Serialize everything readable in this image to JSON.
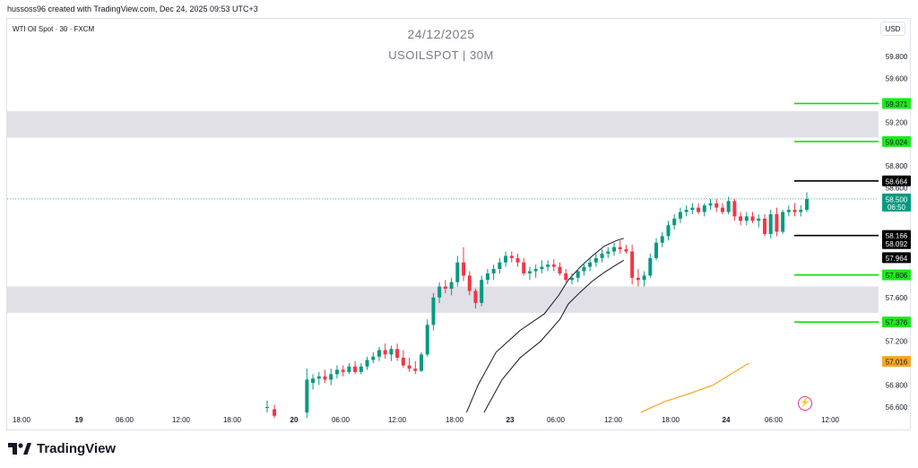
{
  "header": {
    "credit": "hussoss96 created with TradingView.com, Dec 24, 2025 09:53 UTC+3"
  },
  "chart_header": {
    "symbol_label": "WTI Oil Spot · 30 · FXCM",
    "date_title": "24/12/2025",
    "symbol_title": "USOILSPOT | 30M",
    "currency": "USD"
  },
  "footer": {
    "brand": "TradingView"
  },
  "colors": {
    "up": "#089981",
    "down": "#f23645",
    "zone": "#e0e0e6",
    "green_line": "#00e600",
    "black_line": "#000000",
    "orange_line": "#f5a623",
    "grid_text": "#131722",
    "last_price": "#089981"
  },
  "icons": {
    "flash": "flash-icon",
    "logo": "tradingview-logo-icon"
  },
  "chart_data": {
    "type": "candlestick",
    "y_range": [
      56.5,
      60.1
    ],
    "y_ticks": [
      "59.800",
      "59.600",
      "59.200",
      "58.800",
      "58.600",
      "57.600",
      "57.200",
      "56.800",
      "56.600"
    ],
    "y_tick_values": [
      59.8,
      59.6,
      59.2,
      58.8,
      58.6,
      57.6,
      57.2,
      56.8,
      56.6
    ],
    "x_ticks": [
      "18:00",
      "19",
      "06:00",
      "12:00",
      "18:00",
      "20",
      "06:00",
      "12:00",
      "18:00",
      "23",
      "06:00",
      "12:00",
      "18:00",
      "24",
      "06:00",
      "12:00"
    ],
    "x_tick_bold": [
      false,
      true,
      false,
      false,
      false,
      true,
      false,
      false,
      false,
      true,
      false,
      false,
      false,
      true,
      false,
      false
    ],
    "zones": [
      {
        "top": 59.3,
        "bottom": 59.06
      },
      {
        "top": 57.7,
        "bottom": 57.46
      }
    ],
    "levels": [
      {
        "value": 59.371,
        "label": "59.371",
        "kind": "green"
      },
      {
        "value": 59.024,
        "label": "59.024",
        "kind": "green"
      },
      {
        "value": 58.664,
        "label": "58.664",
        "kind": "black"
      },
      {
        "value": 58.166,
        "label": "58.166",
        "kind": "black"
      },
      {
        "value": 57.806,
        "label": "57.806",
        "kind": "green"
      },
      {
        "value": 57.376,
        "label": "57.376",
        "kind": "green"
      }
    ],
    "axis_labels": [
      {
        "value": 58.5,
        "text": "58.500",
        "sub": "06:50",
        "kind": "last"
      },
      {
        "value": 58.092,
        "text": "58.092",
        "kind": "ma_dark"
      },
      {
        "value": 57.964,
        "text": "57.964",
        "kind": "ma_dark"
      },
      {
        "value": 57.016,
        "text": "57.016",
        "kind": "ma_orange"
      }
    ],
    "last_price": 58.5,
    "ma_upper": [
      [
        42.55,
        56.55
      ],
      [
        43.5,
        56.8
      ],
      [
        45,
        57.1
      ],
      [
        47,
        57.3
      ],
      [
        49,
        57.45
      ],
      [
        50.2,
        57.62
      ],
      [
        51,
        57.76
      ],
      [
        52,
        57.88
      ],
      [
        53,
        57.98
      ],
      [
        54,
        58.07
      ],
      [
        55,
        58.12
      ],
      [
        55.6,
        58.14
      ]
    ],
    "ma_lower": [
      [
        44,
        56.55
      ],
      [
        45.5,
        56.85
      ],
      [
        47,
        57.05
      ],
      [
        48.7,
        57.2
      ],
      [
        50.3,
        57.4
      ],
      [
        51,
        57.54
      ],
      [
        52,
        57.65
      ],
      [
        53,
        57.75
      ],
      [
        54,
        57.83
      ],
      [
        55,
        57.9
      ],
      [
        55.6,
        57.94
      ]
    ],
    "ma_orange": [
      [
        57,
        56.55
      ],
      [
        59,
        56.65
      ],
      [
        61,
        56.72
      ],
      [
        63,
        56.8
      ],
      [
        64.5,
        56.9
      ],
      [
        66,
        57.0
      ]
    ],
    "candles": [
      {
        "x": 26.0,
        "o": 56.6,
        "h": 56.66,
        "l": 56.55,
        "c": 56.6
      },
      {
        "x": 26.6,
        "o": 56.58,
        "h": 56.62,
        "l": 56.5,
        "c": 56.52
      },
      {
        "x": 29.3,
        "o": 56.55,
        "h": 56.95,
        "l": 56.5,
        "c": 56.85
      },
      {
        "x": 29.8,
        "o": 56.82,
        "h": 56.9,
        "l": 56.76,
        "c": 56.86
      },
      {
        "x": 30.3,
        "o": 56.86,
        "h": 56.92,
        "l": 56.8,
        "c": 56.88
      },
      {
        "x": 30.8,
        "o": 56.88,
        "h": 56.94,
        "l": 56.82,
        "c": 56.85
      },
      {
        "x": 31.3,
        "o": 56.85,
        "h": 56.95,
        "l": 56.8,
        "c": 56.9
      },
      {
        "x": 31.8,
        "o": 56.9,
        "h": 56.98,
        "l": 56.86,
        "c": 56.94
      },
      {
        "x": 32.3,
        "o": 56.94,
        "h": 56.98,
        "l": 56.88,
        "c": 56.92
      },
      {
        "x": 32.8,
        "o": 56.92,
        "h": 57.0,
        "l": 56.9,
        "c": 56.97
      },
      {
        "x": 33.3,
        "o": 56.97,
        "h": 57.02,
        "l": 56.9,
        "c": 56.92
      },
      {
        "x": 33.8,
        "o": 56.92,
        "h": 57.0,
        "l": 56.9,
        "c": 56.97
      },
      {
        "x": 34.3,
        "o": 56.97,
        "h": 57.06,
        "l": 56.94,
        "c": 57.03
      },
      {
        "x": 34.8,
        "o": 57.03,
        "h": 57.1,
        "l": 57.0,
        "c": 57.06
      },
      {
        "x": 35.3,
        "o": 57.06,
        "h": 57.15,
        "l": 57.02,
        "c": 57.12
      },
      {
        "x": 35.8,
        "o": 57.12,
        "h": 57.18,
        "l": 57.04,
        "c": 57.08
      },
      {
        "x": 36.3,
        "o": 57.08,
        "h": 57.16,
        "l": 57.02,
        "c": 57.13
      },
      {
        "x": 36.8,
        "o": 57.13,
        "h": 57.18,
        "l": 57.02,
        "c": 57.05
      },
      {
        "x": 37.3,
        "o": 57.05,
        "h": 57.12,
        "l": 56.96,
        "c": 56.98
      },
      {
        "x": 37.8,
        "o": 56.98,
        "h": 57.05,
        "l": 56.92,
        "c": 56.95
      },
      {
        "x": 38.3,
        "o": 56.95,
        "h": 57.02,
        "l": 56.9,
        "c": 56.93
      },
      {
        "x": 38.8,
        "o": 56.93,
        "h": 57.1,
        "l": 56.92,
        "c": 57.08
      },
      {
        "x": 39.3,
        "o": 57.08,
        "h": 57.4,
        "l": 57.06,
        "c": 57.35
      },
      {
        "x": 39.8,
        "o": 57.35,
        "h": 57.64,
        "l": 57.3,
        "c": 57.6
      },
      {
        "x": 40.3,
        "o": 57.6,
        "h": 57.74,
        "l": 57.55,
        "c": 57.7
      },
      {
        "x": 40.8,
        "o": 57.7,
        "h": 57.76,
        "l": 57.64,
        "c": 57.68
      },
      {
        "x": 41.3,
        "o": 57.68,
        "h": 57.78,
        "l": 57.62,
        "c": 57.74
      },
      {
        "x": 41.8,
        "o": 57.74,
        "h": 57.98,
        "l": 57.7,
        "c": 57.92
      },
      {
        "x": 42.3,
        "o": 57.92,
        "h": 58.06,
        "l": 57.75,
        "c": 57.8
      },
      {
        "x": 42.8,
        "o": 57.8,
        "h": 57.84,
        "l": 57.62,
        "c": 57.66
      },
      {
        "x": 43.3,
        "o": 57.66,
        "h": 57.68,
        "l": 57.5,
        "c": 57.55
      },
      {
        "x": 43.8,
        "o": 57.55,
        "h": 57.8,
        "l": 57.52,
        "c": 57.76
      },
      {
        "x": 44.3,
        "o": 57.76,
        "h": 57.86,
        "l": 57.72,
        "c": 57.82
      },
      {
        "x": 44.8,
        "o": 57.82,
        "h": 57.9,
        "l": 57.76,
        "c": 57.86
      },
      {
        "x": 45.3,
        "o": 57.86,
        "h": 57.96,
        "l": 57.82,
        "c": 57.92
      },
      {
        "x": 45.8,
        "o": 57.92,
        "h": 58.02,
        "l": 57.88,
        "c": 57.98
      },
      {
        "x": 46.3,
        "o": 57.98,
        "h": 58.02,
        "l": 57.92,
        "c": 57.96
      },
      {
        "x": 46.8,
        "o": 57.96,
        "h": 58.0,
        "l": 57.88,
        "c": 57.92
      },
      {
        "x": 47.3,
        "o": 57.92,
        "h": 57.96,
        "l": 57.8,
        "c": 57.82
      },
      {
        "x": 47.8,
        "o": 57.82,
        "h": 57.88,
        "l": 57.76,
        "c": 57.84
      },
      {
        "x": 48.3,
        "o": 57.84,
        "h": 57.9,
        "l": 57.78,
        "c": 57.86
      },
      {
        "x": 48.8,
        "o": 57.86,
        "h": 57.94,
        "l": 57.82,
        "c": 57.88
      },
      {
        "x": 49.3,
        "o": 57.88,
        "h": 57.94,
        "l": 57.84,
        "c": 57.9
      },
      {
        "x": 49.8,
        "o": 57.9,
        "h": 57.95,
        "l": 57.84,
        "c": 57.88
      },
      {
        "x": 50.3,
        "o": 57.88,
        "h": 57.92,
        "l": 57.8,
        "c": 57.82
      },
      {
        "x": 50.8,
        "o": 57.82,
        "h": 57.86,
        "l": 57.74,
        "c": 57.76
      },
      {
        "x": 51.3,
        "o": 57.76,
        "h": 57.82,
        "l": 57.72,
        "c": 57.78
      },
      {
        "x": 51.8,
        "o": 57.78,
        "h": 57.86,
        "l": 57.74,
        "c": 57.84
      },
      {
        "x": 52.3,
        "o": 57.84,
        "h": 57.92,
        "l": 57.8,
        "c": 57.88
      },
      {
        "x": 52.8,
        "o": 57.88,
        "h": 57.96,
        "l": 57.84,
        "c": 57.92
      },
      {
        "x": 53.3,
        "o": 57.92,
        "h": 58.0,
        "l": 57.88,
        "c": 57.96
      },
      {
        "x": 53.8,
        "o": 57.96,
        "h": 58.04,
        "l": 57.92,
        "c": 58.0
      },
      {
        "x": 54.3,
        "o": 58.0,
        "h": 58.06,
        "l": 57.96,
        "c": 58.02
      },
      {
        "x": 54.8,
        "o": 58.02,
        "h": 58.1,
        "l": 57.98,
        "c": 58.06
      },
      {
        "x": 55.3,
        "o": 58.06,
        "h": 58.12,
        "l": 58.0,
        "c": 58.04
      },
      {
        "x": 55.8,
        "o": 58.04,
        "h": 58.08,
        "l": 58.0,
        "c": 58.02
      },
      {
        "x": 56.3,
        "o": 58.02,
        "h": 58.08,
        "l": 57.72,
        "c": 57.78
      },
      {
        "x": 56.8,
        "o": 57.78,
        "h": 57.86,
        "l": 57.7,
        "c": 57.76
      },
      {
        "x": 57.3,
        "o": 57.76,
        "h": 57.84,
        "l": 57.7,
        "c": 57.8
      },
      {
        "x": 57.8,
        "o": 57.8,
        "h": 58.0,
        "l": 57.78,
        "c": 57.96
      },
      {
        "x": 58.3,
        "o": 57.96,
        "h": 58.14,
        "l": 57.94,
        "c": 58.1
      },
      {
        "x": 58.8,
        "o": 58.1,
        "h": 58.2,
        "l": 58.06,
        "c": 58.16
      },
      {
        "x": 59.3,
        "o": 58.16,
        "h": 58.3,
        "l": 58.12,
        "c": 58.26
      },
      {
        "x": 59.8,
        "o": 58.26,
        "h": 58.36,
        "l": 58.22,
        "c": 58.32
      },
      {
        "x": 60.3,
        "o": 58.32,
        "h": 58.42,
        "l": 58.28,
        "c": 58.38
      },
      {
        "x": 60.8,
        "o": 58.38,
        "h": 58.44,
        "l": 58.34,
        "c": 58.4
      },
      {
        "x": 61.3,
        "o": 58.4,
        "h": 58.46,
        "l": 58.36,
        "c": 58.42
      },
      {
        "x": 61.8,
        "o": 58.42,
        "h": 58.46,
        "l": 58.36,
        "c": 58.38
      },
      {
        "x": 62.3,
        "o": 58.38,
        "h": 58.46,
        "l": 58.34,
        "c": 58.44
      },
      {
        "x": 62.8,
        "o": 58.44,
        "h": 58.5,
        "l": 58.4,
        "c": 58.46
      },
      {
        "x": 63.3,
        "o": 58.46,
        "h": 58.5,
        "l": 58.38,
        "c": 58.42
      },
      {
        "x": 63.8,
        "o": 58.42,
        "h": 58.46,
        "l": 58.36,
        "c": 58.38
      },
      {
        "x": 64.3,
        "o": 58.38,
        "h": 58.52,
        "l": 58.36,
        "c": 58.48
      },
      {
        "x": 64.8,
        "o": 58.48,
        "h": 58.5,
        "l": 58.3,
        "c": 58.34
      },
      {
        "x": 65.3,
        "o": 58.34,
        "h": 58.38,
        "l": 58.26,
        "c": 58.3
      },
      {
        "x": 65.8,
        "o": 58.3,
        "h": 58.38,
        "l": 58.26,
        "c": 58.34
      },
      {
        "x": 66.3,
        "o": 58.34,
        "h": 58.38,
        "l": 58.28,
        "c": 58.3
      },
      {
        "x": 66.8,
        "o": 58.3,
        "h": 58.36,
        "l": 58.24,
        "c": 58.32
      },
      {
        "x": 67.3,
        "o": 58.32,
        "h": 58.36,
        "l": 58.16,
        "c": 58.18
      },
      {
        "x": 67.8,
        "o": 58.18,
        "h": 58.4,
        "l": 58.14,
        "c": 58.36
      },
      {
        "x": 68.3,
        "o": 58.36,
        "h": 58.42,
        "l": 58.16,
        "c": 58.2
      },
      {
        "x": 68.8,
        "o": 58.2,
        "h": 58.4,
        "l": 58.18,
        "c": 58.38
      },
      {
        "x": 69.3,
        "o": 58.38,
        "h": 58.44,
        "l": 58.34,
        "c": 58.4
      },
      {
        "x": 69.8,
        "o": 58.4,
        "h": 58.46,
        "l": 58.34,
        "c": 58.38
      },
      {
        "x": 70.3,
        "o": 58.38,
        "h": 58.44,
        "l": 58.34,
        "c": 58.4
      },
      {
        "x": 70.8,
        "o": 58.4,
        "h": 58.56,
        "l": 58.38,
        "c": 58.5
      }
    ]
  }
}
